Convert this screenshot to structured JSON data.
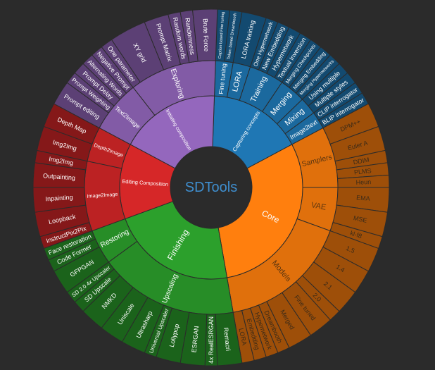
{
  "chart_data": {
    "type": "sunburst",
    "center_label": "SDTools",
    "colors": {
      "background": "#2b2b2b",
      "center": "#2b2b2b",
      "center_text": "#3f8fd0",
      "Core": "#ff7f0e",
      "Capturing concepts": "#1f77b4",
      "Initiating composition": "#9467bd",
      "Editing Composition": "#d62728",
      "Finishing": "#2ca02c",
      "stroke": "#2b2b2b"
    },
    "tree": [
      {
        "name": "Capturing concepts",
        "value": 15,
        "children": [
          {
            "name": "Fine tuning",
            "value": 2,
            "children": [
              {
                "name": "Caption based Fine tuning",
                "value": 1
              },
              {
                "name": "Token based Dreambooth",
                "value": 1
              }
            ]
          },
          {
            "name": "LORA",
            "value": 2,
            "children": [
              {
                "name": "LORA training",
                "value": 2
              }
            ]
          },
          {
            "name": "Training",
            "value": 4,
            "children": [
              {
                "name": "One Hypernetwork",
                "value": 1
              },
              {
                "name": "New Embedding",
                "value": 1
              },
              {
                "name": "Hypernetwork",
                "value": 1
              },
              {
                "name": "Textual Inversion",
                "value": 1
              }
            ]
          },
          {
            "name": "Merging",
            "value": 3,
            "children": [
              {
                "name": "Merging Checkpoints",
                "value": 1
              },
              {
                "name": "Merging Embedding",
                "value": 1
              },
              {
                "name": "Merging Hypernetworks",
                "value": 1
              }
            ]
          },
          {
            "name": "Mixing",
            "value": 2,
            "children": [
              {
                "name": "Using multiple",
                "value": 1
              },
              {
                "name": "Multiple styles",
                "value": 1
              }
            ]
          },
          {
            "name": "Image2text",
            "value": 2,
            "children": [
              {
                "name": "CLIP interrogator",
                "value": 1
              },
              {
                "name": "BLIP interrogator",
                "value": 1
              }
            ]
          }
        ]
      },
      {
        "name": "Core",
        "value": 27,
        "children": [
          {
            "name": "Samplers",
            "value": 7,
            "children": [
              {
                "name": "DPM++",
                "value": 2
              },
              {
                "name": "Euler A",
                "value": 2
              },
              {
                "name": "DDIM",
                "value": 1
              },
              {
                "name": "PLMS",
                "value": 1
              },
              {
                "name": "Heun",
                "value": 1
              }
            ]
          },
          {
            "name": "VAE",
            "value": 5,
            "children": [
              {
                "name": "EMA",
                "value": 2
              },
              {
                "name": "MSE",
                "value": 2
              },
              {
                "name": "kl-f8",
                "value": 1
              }
            ]
          },
          {
            "name": "Models",
            "value": 15,
            "children": [
              {
                "name": "1.5",
                "value": 2
              },
              {
                "name": "1.4",
                "value": 2
              },
              {
                "name": "2.1",
                "value": 2
              },
              {
                "name": "2.0",
                "value": 1
              },
              {
                "name": "Fine tuned",
                "value": 2
              },
              {
                "name": "Merged",
                "value": 2
              },
              {
                "name": "Dreambooth",
                "value": 1
              },
              {
                "name": "Hypernetwork",
                "value": 1
              },
              {
                "name": "Embedding",
                "value": 1
              },
              {
                "name": "LORA",
                "value": 1
              }
            ]
          }
        ]
      },
      {
        "name": "Finishing",
        "value": 20,
        "children": [
          {
            "name": "Upscaling",
            "value": 16,
            "children": [
              {
                "name": "Remacri",
                "value": 2
              },
              {
                "name": "4x RealESRGAN",
                "value": 1
              },
              {
                "name": "ESRGAN",
                "value": 2
              },
              {
                "name": "Lollypop",
                "value": 2
              },
              {
                "name": "Universal Upscaler",
                "value": 1
              },
              {
                "name": "Ultrasharp",
                "value": 2
              },
              {
                "name": "Uniscale",
                "value": 2
              },
              {
                "name": "NMKD",
                "value": 2
              },
              {
                "name": "SD Upscale",
                "value": 1
              },
              {
                "name": "SD 2.0 4x Upscaler",
                "value": 1
              }
            ]
          },
          {
            "name": "Restoring",
            "value": 4,
            "children": [
              {
                "name": "GFPGAN",
                "value": 2
              },
              {
                "name": "Code Former",
                "value": 1
              },
              {
                "name": "Face restoration",
                "value": 1
              }
            ]
          }
        ]
      },
      {
        "name": "Editing Composition",
        "value": 12,
        "children": [
          {
            "name": "Image2Image",
            "value": 8,
            "children": [
              {
                "name": "InstructPix2Pix",
                "value": 1
              },
              {
                "name": "Loopback",
                "value": 2
              },
              {
                "name": "Inpainting",
                "value": 2
              },
              {
                "name": "Outpainting",
                "value": 2
              },
              {
                "name": "Img2Img",
                "value": 1
              }
            ]
          },
          {
            "name": "Depth2Image",
            "value": 4,
            "children": [
              {
                "name": "Img2Img",
                "value": 2
              },
              {
                "name": "Depth Map",
                "value": 2
              }
            ]
          }
        ]
      },
      {
        "name": "Initiating composition",
        "value": 16,
        "children": [
          {
            "name": "Text2Image",
            "value": 6,
            "children": [
              {
                "name": "Prompt editing",
                "value": 2
              },
              {
                "name": "Prompt Weighting",
                "value": 1
              },
              {
                "name": "Prompt Delay",
                "value": 1
              },
              {
                "name": "Alternating Words",
                "value": 1
              },
              {
                "name": "Negative Prompt",
                "value": 1
              }
            ]
          },
          {
            "name": "Exploring",
            "value": 10,
            "children": [
              {
                "name": "One parameter",
                "value": 1
              },
              {
                "name": "XY grid",
                "value": 3
              },
              {
                "name": "Prompt Matrix",
                "value": 2
              },
              {
                "name": "Random words",
                "value": 1
              },
              {
                "name": "Randomness",
                "value": 1
              },
              {
                "name": "Brute Force",
                "value": 2
              }
            ]
          }
        ]
      }
    ]
  }
}
